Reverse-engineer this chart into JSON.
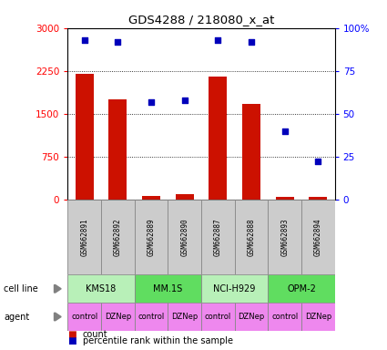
{
  "title": "GDS4288 / 218080_x_at",
  "samples": [
    "GSM662891",
    "GSM662892",
    "GSM662889",
    "GSM662890",
    "GSM662887",
    "GSM662888",
    "GSM662893",
    "GSM662894"
  ],
  "counts": [
    2200,
    1750,
    60,
    100,
    2150,
    1680,
    50,
    40
  ],
  "percentiles": [
    93,
    92,
    57,
    58,
    93,
    92,
    40,
    22
  ],
  "cell_lines": [
    {
      "label": "KMS18",
      "start": 0,
      "end": 2,
      "color": "#b8f0b8"
    },
    {
      "label": "MM.1S",
      "start": 2,
      "end": 4,
      "color": "#60dd60"
    },
    {
      "label": "NCI-H929",
      "start": 4,
      "end": 6,
      "color": "#b8f0b8"
    },
    {
      "label": "OPM-2",
      "start": 6,
      "end": 8,
      "color": "#60dd60"
    }
  ],
  "agents": [
    "control",
    "DZNep",
    "control",
    "DZNep",
    "control",
    "DZNep",
    "control",
    "DZNep"
  ],
  "agent_color": "#ee88ee",
  "bar_color": "#cc1100",
  "dot_color": "#0000bb",
  "ylim_left": [
    0,
    3000
  ],
  "ylim_right": [
    0,
    100
  ],
  "yticks_left": [
    0,
    750,
    1500,
    2250,
    3000
  ],
  "yticks_right": [
    0,
    25,
    50,
    75,
    100
  ],
  "sample_box_color": "#cccccc",
  "legend_count_label": "count",
  "legend_pct_label": "percentile rank within the sample",
  "cell_line_label": "cell line",
  "agent_label": "agent",
  "title_fontsize": 9.5,
  "tick_fontsize": 7.5,
  "sample_fontsize": 5.5,
  "cell_fontsize": 7,
  "agent_fontsize": 6
}
